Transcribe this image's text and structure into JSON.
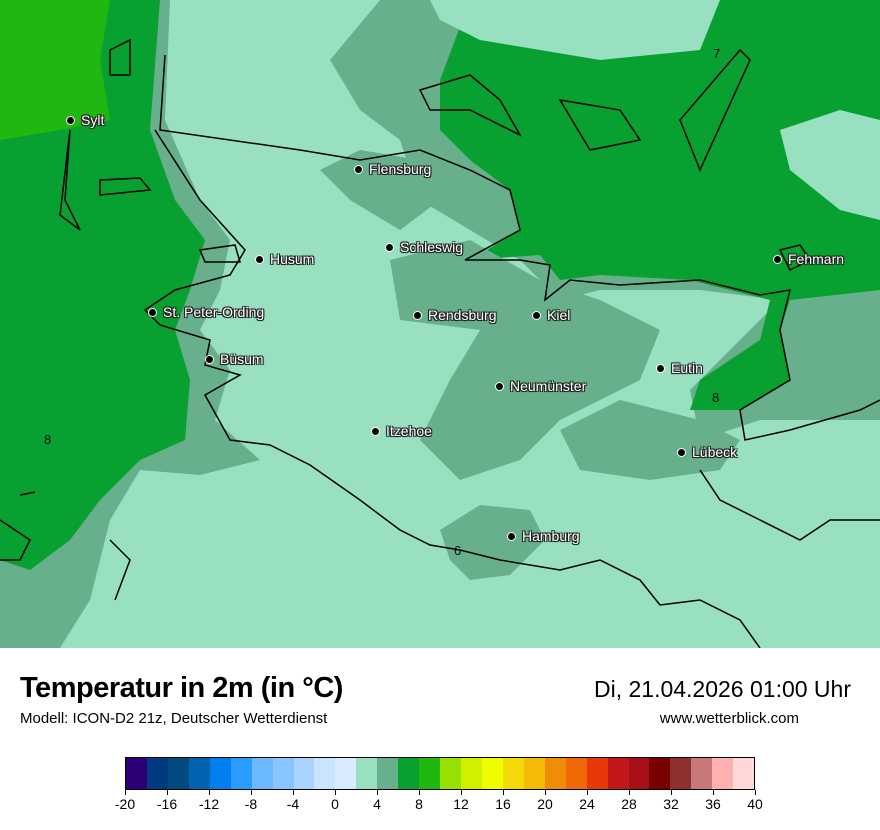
{
  "map": {
    "cities": [
      "Sylt",
      "Flensburg",
      "Schleswig",
      "Husum",
      "Fehmarn",
      "St. Peter-Ording",
      "Rendsburg",
      "Kiel",
      "Büsum",
      "Eutin",
      "Neumünster",
      "Itzehoe",
      "Lübeck",
      "Hamburg"
    ],
    "contour_labels": [
      "7",
      "8",
      "8",
      "6"
    ],
    "colors": {
      "land_light": "#98e0c0",
      "land_medium": "#68b08c",
      "sea_green": "#08a030",
      "sea_bright": "#20b810",
      "border": "#000000"
    }
  },
  "header": {
    "title": "Temperatur in 2m (in °C)",
    "subtitle": "Modell: ICON-D2 21z, Deutscher Wetterdienst",
    "datetime": "Di, 21.04.2026 01:00 Uhr",
    "website": "www.wetterblick.com"
  },
  "legend": {
    "unit": "°C",
    "range": [
      -20,
      40
    ],
    "step": 2,
    "colors": [
      "#2e0078",
      "#003a80",
      "#004a80",
      "#0062b0",
      "#0080f0",
      "#2a9cff",
      "#6cb8ff",
      "#88c4ff",
      "#a8d4ff",
      "#c8e4ff",
      "#d8eaff",
      "#98e0c0",
      "#68b08c",
      "#08a030",
      "#20b810",
      "#98e000",
      "#d0f000",
      "#f0fc00",
      "#f4d808",
      "#f4bc08",
      "#f08c08",
      "#f06808",
      "#e83808",
      "#c01818",
      "#a81018",
      "#780000",
      "#8c3030",
      "#c87878",
      "#ffb0b0",
      "#ffd8d8"
    ],
    "ticks": [
      "-20",
      "-16",
      "-12",
      "-8",
      "-4",
      "0",
      "4",
      "8",
      "12",
      "16",
      "20",
      "24",
      "28",
      "32",
      "36",
      "40"
    ]
  }
}
